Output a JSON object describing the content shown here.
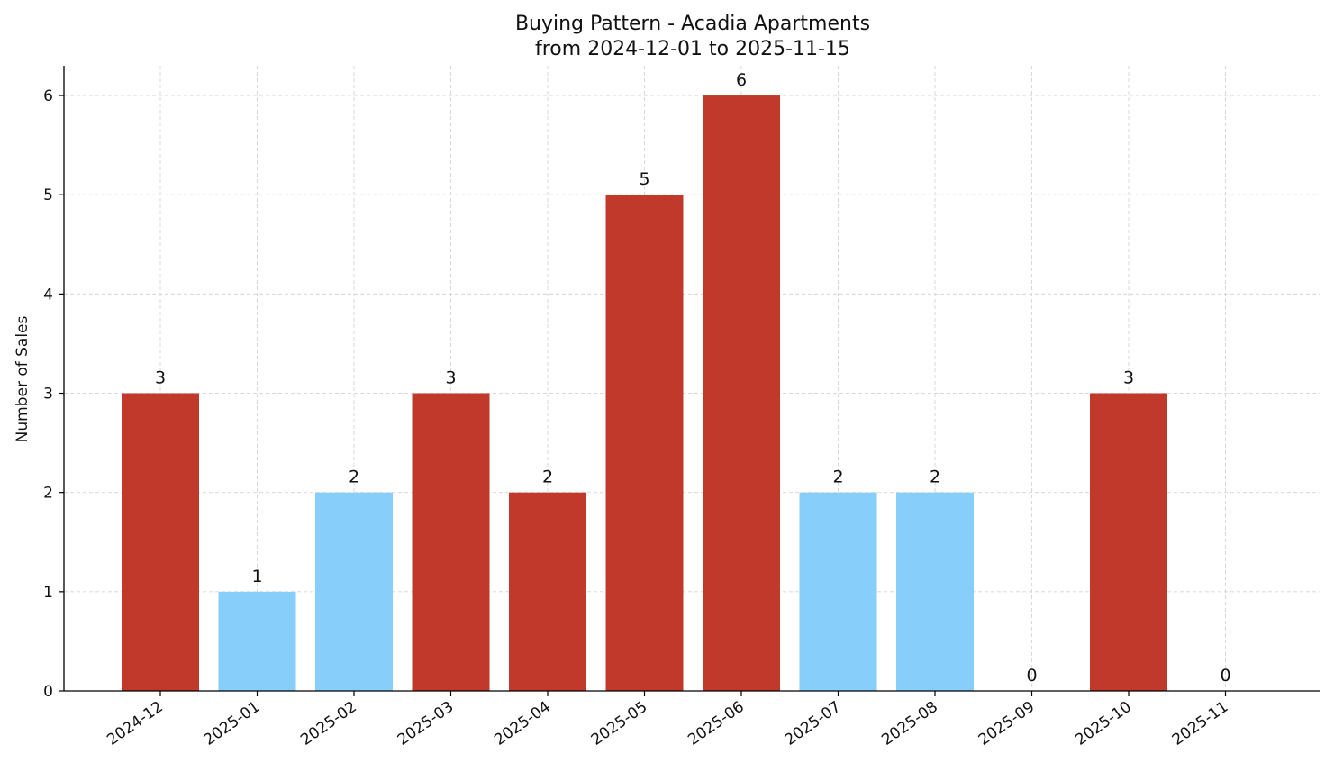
{
  "chart_data": {
    "type": "bar",
    "title": "Buying Pattern - Acadia Apartments",
    "subtitle": "from 2024-12-01 to 2025-11-15",
    "xlabel": "",
    "ylabel": "Number of Sales",
    "categories": [
      "2024-12",
      "2025-01",
      "2025-02",
      "2025-03",
      "2025-04",
      "2025-05",
      "2025-06",
      "2025-07",
      "2025-08",
      "2025-09",
      "2025-10",
      "2025-11"
    ],
    "values": [
      3,
      1,
      2,
      3,
      2,
      5,
      6,
      2,
      2,
      0,
      3,
      0
    ],
    "bar_colors": [
      "#c0392b",
      "#87cefa",
      "#87cefa",
      "#c0392b",
      "#c0392b",
      "#c0392b",
      "#c0392b",
      "#87cefa",
      "#87cefa",
      "#87cefa",
      "#c0392b",
      "#87cefa"
    ],
    "ylim": [
      0,
      6.3
    ],
    "yticks": [
      0,
      1,
      2,
      3,
      4,
      5,
      6
    ],
    "grid": true,
    "legend": "none"
  }
}
